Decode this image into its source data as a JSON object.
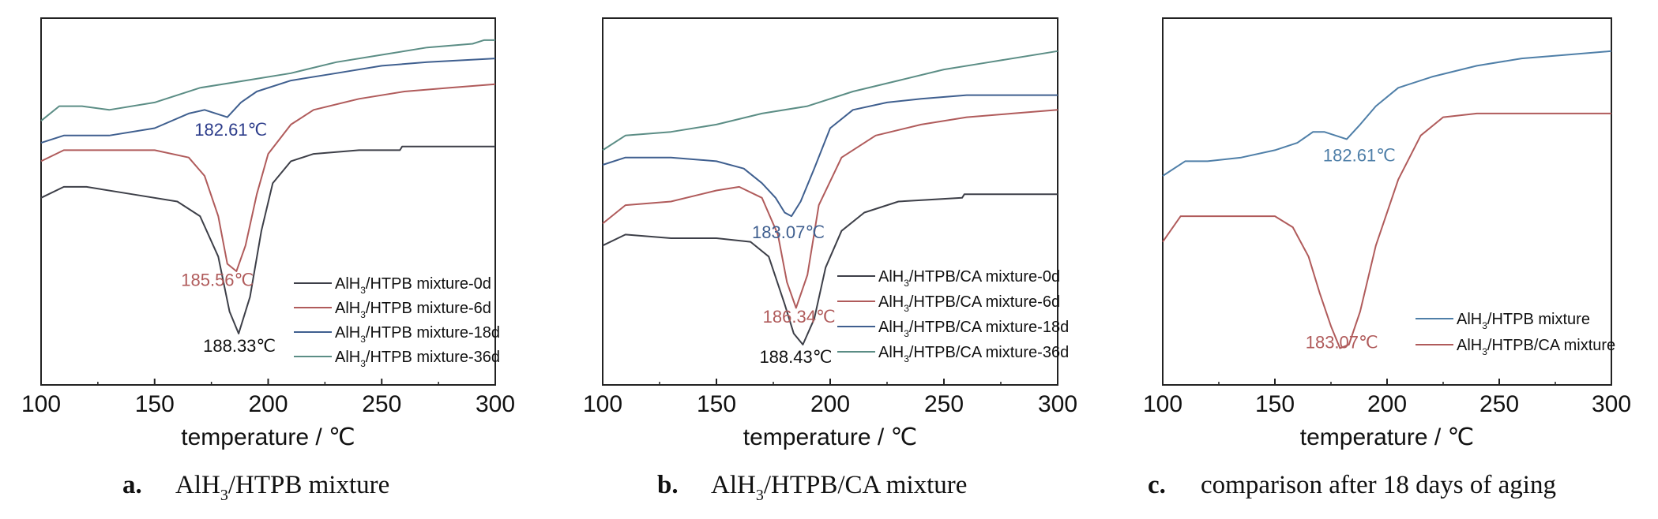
{
  "chart_data": [
    {
      "type": "line",
      "caption_letter": "a.",
      "caption_text": "AlH3/HTPB mixture",
      "caption_sub": {
        "before": "AlH",
        "sub": "3",
        "after": "/HTPB mixture"
      },
      "xlabel": "temperature / ℃",
      "ylabel": "",
      "xlim": [
        100,
        300
      ],
      "ylim": [
        0,
        100
      ],
      "xticks": [
        100,
        150,
        200,
        250,
        300
      ],
      "legend_position": "bottom-right",
      "series": [
        {
          "name": "AlH3/HTPB mixture-0d",
          "legend": {
            "before": "AlH",
            "sub": "3",
            "after": "/HTPB mixture-0d"
          },
          "color": "#3d3f48",
          "x": [
            100,
            110,
            120,
            140,
            160,
            170,
            178,
            183,
            187,
            192,
            197,
            202,
            210,
            220,
            240,
            258,
            259,
            260,
            280,
            300
          ],
          "y": [
            51,
            54,
            54,
            52,
            50,
            46,
            35,
            20,
            14,
            24,
            42,
            55,
            61,
            63,
            64,
            64,
            65,
            65,
            65,
            65
          ]
        },
        {
          "name": "AlH3/HTPB mixture-6d",
          "legend": {
            "before": "AlH",
            "sub": "3",
            "after": "/HTPB mixture-6d"
          },
          "color": "#b05b5b",
          "x": [
            100,
            110,
            130,
            150,
            165,
            172,
            178,
            182,
            186,
            190,
            195,
            200,
            210,
            220,
            240,
            260,
            280,
            300
          ],
          "y": [
            61,
            64,
            64,
            64,
            62,
            57,
            46,
            33,
            31,
            38,
            52,
            63,
            71,
            75,
            78,
            80,
            81,
            82
          ]
        },
        {
          "name": "AlH3/HTPB mixture-18d",
          "legend": {
            "before": "AlH",
            "sub": "3",
            "after": "/HTPB mixture-18d"
          },
          "color": "#3f5f8f",
          "x": [
            100,
            110,
            130,
            150,
            165,
            172,
            177,
            182,
            188,
            195,
            210,
            230,
            250,
            270,
            300
          ],
          "y": [
            66,
            68,
            68,
            70,
            74,
            75,
            74,
            73,
            77,
            80,
            83,
            85,
            87,
            88,
            89
          ]
        },
        {
          "name": "AlH3/HTPB mixture-36d",
          "legend": {
            "before": "AlH",
            "sub": "3",
            "after": "/HTPB mixture-36d"
          },
          "color": "#5b8d85",
          "x": [
            100,
            108,
            118,
            130,
            150,
            170,
            190,
            210,
            230,
            250,
            270,
            290,
            295,
            300
          ],
          "y": [
            72,
            76,
            76,
            75,
            77,
            81,
            83,
            85,
            88,
            90,
            92,
            93,
            94,
            94
          ]
        }
      ],
      "annotations": [
        {
          "text": "182.61℃",
          "x": 178,
          "y": 68,
          "color": "#2c3c8a"
        },
        {
          "text": "185.56℃",
          "x": 186,
          "y": 27,
          "color": "#b05b5b"
        },
        {
          "text": "188.33℃",
          "x": 187,
          "y": 9,
          "color": "#111111"
        }
      ]
    },
    {
      "type": "line",
      "caption_letter": "b.",
      "caption_text": "AlH3/HTPB/CA mixture",
      "caption_sub": {
        "before": "AlH",
        "sub": "3",
        "after": "/HTPB/CA mixture"
      },
      "xlabel": "temperature / ℃",
      "ylabel": "",
      "xlim": [
        100,
        300
      ],
      "ylim": [
        0,
        100
      ],
      "xticks": [
        100,
        150,
        200,
        250,
        300
      ],
      "legend_position": "bottom-right",
      "series": [
        {
          "name": "AlH3/HTPB/CA mixture-0d",
          "legend": {
            "before": "AlH",
            "sub": "3",
            "after": "/HTPB/CA mixture-0d"
          },
          "color": "#3d3f48",
          "x": [
            100,
            110,
            130,
            150,
            165,
            173,
            180,
            184,
            188,
            193,
            198,
            205,
            215,
            230,
            258,
            259,
            270,
            300
          ],
          "y": [
            38,
            41,
            40,
            40,
            39,
            35,
            22,
            14,
            11,
            18,
            32,
            42,
            47,
            50,
            51,
            52,
            52,
            52
          ]
        },
        {
          "name": "AlH3/HTPB/CA mixture-6d",
          "legend": {
            "before": "AlH",
            "sub": "3",
            "after": "/HTPB/CA mixture-6d"
          },
          "color": "#b05b5b",
          "x": [
            100,
            110,
            130,
            150,
            160,
            170,
            177,
            181,
            185,
            190,
            195,
            205,
            220,
            240,
            260,
            280,
            300
          ],
          "y": [
            44,
            49,
            50,
            53,
            54,
            51,
            41,
            28,
            21,
            30,
            49,
            62,
            68,
            71,
            73,
            74,
            75
          ]
        },
        {
          "name": "AlH3/HTPB/CA mixture-18d",
          "legend": {
            "before": "AlH",
            "sub": "3",
            "after": "/HTPB/CA mixture-18d"
          },
          "color": "#3f5f8f",
          "x": [
            100,
            110,
            130,
            150,
            162,
            170,
            176,
            180,
            183,
            187,
            193,
            200,
            210,
            225,
            240,
            260,
            280,
            300
          ],
          "y": [
            60,
            62,
            62,
            61,
            59,
            55,
            51,
            47,
            46,
            50,
            59,
            70,
            75,
            77,
            78,
            79,
            79,
            79
          ]
        },
        {
          "name": "AlH3/HTPB/CA mixture-36d",
          "legend": {
            "before": "AlH",
            "sub": "3",
            "after": "/HTPB/CA mixture-36d"
          },
          "color": "#5b8d85",
          "x": [
            100,
            110,
            130,
            150,
            170,
            190,
            210,
            230,
            250,
            270,
            300
          ],
          "y": [
            64,
            68,
            69,
            71,
            74,
            76,
            80,
            83,
            86,
            88,
            91
          ]
        }
      ],
      "annotations": [
        {
          "text": "183.07℃",
          "x": 183,
          "y": 40,
          "color": "#3f5f8f"
        },
        {
          "text": "186.34℃",
          "x": 186,
          "y": 17,
          "color": "#b05b5b"
        },
        {
          "text": "188.43℃",
          "x": 188,
          "y": 6,
          "color": "#111111"
        }
      ]
    },
    {
      "type": "line",
      "caption_letter": "c.",
      "caption_text": "comparison after 18 days of aging",
      "xlabel": "temperature / ℃",
      "ylabel": "",
      "xlim": [
        100,
        300
      ],
      "ylim": [
        0,
        100
      ],
      "xticks": [
        100,
        150,
        200,
        250,
        300
      ],
      "legend_position": "bottom-right",
      "series": [
        {
          "name": "AlH3/HTPB mixture",
          "legend": {
            "before": "AlH",
            "sub": "3",
            "after": "/HTPB mixture"
          },
          "color": "#4f7fa8",
          "x": [
            100,
            110,
            120,
            135,
            150,
            160,
            167,
            172,
            177,
            182,
            188,
            195,
            205,
            220,
            240,
            260,
            280,
            300
          ],
          "y": [
            57,
            61,
            61,
            62,
            64,
            66,
            69,
            69,
            68,
            67,
            71,
            76,
            81,
            84,
            87,
            89,
            90,
            91
          ]
        },
        {
          "name": "AlH3/HTPB/CA mixture",
          "legend": {
            "before": "AlH",
            "sub": "3",
            "after": "/HTPB/CA mixture"
          },
          "color": "#b05b5b",
          "x": [
            100,
            108,
            120,
            135,
            150,
            158,
            165,
            170,
            175,
            179,
            183,
            188,
            195,
            205,
            215,
            225,
            240,
            260,
            280,
            300
          ],
          "y": [
            39,
            46,
            46,
            46,
            46,
            43,
            35,
            25,
            16,
            10,
            11,
            20,
            38,
            56,
            68,
            73,
            74,
            74,
            74,
            74
          ]
        }
      ],
      "annotations": [
        {
          "text": "182.61℃",
          "x": 182,
          "y": 61,
          "color": "#4f7fa8"
        },
        {
          "text": "183.07℃",
          "x": 183,
          "y": 10,
          "color": "#b05b5b"
        }
      ]
    }
  ]
}
